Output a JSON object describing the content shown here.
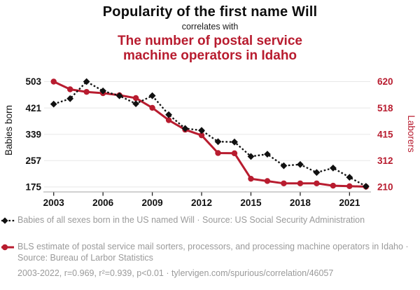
{
  "header": {
    "title": "Popularity of the first name Will",
    "connector": "correlates with",
    "subtitle_lines": [
      "The number of postal service",
      "machine operators in Idaho"
    ]
  },
  "colors": {
    "accent_red": "#b81c2f",
    "series_black": "#111111",
    "legend_gray": "#9a9a9a",
    "gridline": "#e8e8e8",
    "axis_line": "#b5b5b5",
    "tick_mark": "#222222"
  },
  "chart_data": {
    "type": "line",
    "x": [
      2003,
      2004,
      2005,
      2006,
      2007,
      2008,
      2009,
      2010,
      2011,
      2012,
      2013,
      2014,
      2015,
      2016,
      2017,
      2018,
      2019,
      2020,
      2021,
      2022
    ],
    "x_tick_labels": [
      2003,
      2006,
      2009,
      2012,
      2015,
      2018,
      2021
    ],
    "left_axis": {
      "label": "Babies born",
      "ticks": [
        503,
        421,
        339,
        257,
        175
      ],
      "range": [
        175,
        503
      ]
    },
    "right_axis": {
      "label": "Laborers",
      "ticks": [
        620,
        518,
        415,
        312,
        210
      ],
      "range": [
        210,
        620
      ]
    },
    "grid": true,
    "legend_position": "bottom",
    "series": [
      {
        "name": "Babies of all sexes born in the US named Will",
        "axis": "left",
        "color": "#111111",
        "line_style": "dashed",
        "marker": "diamond",
        "values": [
          433,
          450,
          503,
          474,
          459,
          434,
          459,
          400,
          357,
          351,
          316,
          315,
          270,
          277,
          241,
          245,
          220,
          234,
          205,
          177
        ]
      },
      {
        "name": "BLS estimate of postal service mail sorters, processors, and processing machine operators in Idaho",
        "axis": "right",
        "color": "#b81c2f",
        "line_style": "solid",
        "marker": "circle",
        "values": [
          620,
          590,
          580,
          575,
          567,
          556,
          518,
          470,
          433,
          411,
          342,
          341,
          242,
          233,
          224,
          224,
          224,
          215,
          213,
          211
        ]
      }
    ]
  },
  "legend": {
    "items": [
      {
        "marker": "black-diamond-dashed",
        "text": "Babies of all sexes born in the US named Will · Source: US Social Security Administration"
      },
      {
        "marker": "red-circle-solid",
        "text": "BLS estimate of postal service mail sorters, processors, and processing machine operators in Idaho · Source: Bureau of Larbor Statistics"
      }
    ],
    "footer": "2003-2022, r=0.969, r²=0.939, p<0.01 · tylervigen.com/spurious/correlation/46057"
  }
}
